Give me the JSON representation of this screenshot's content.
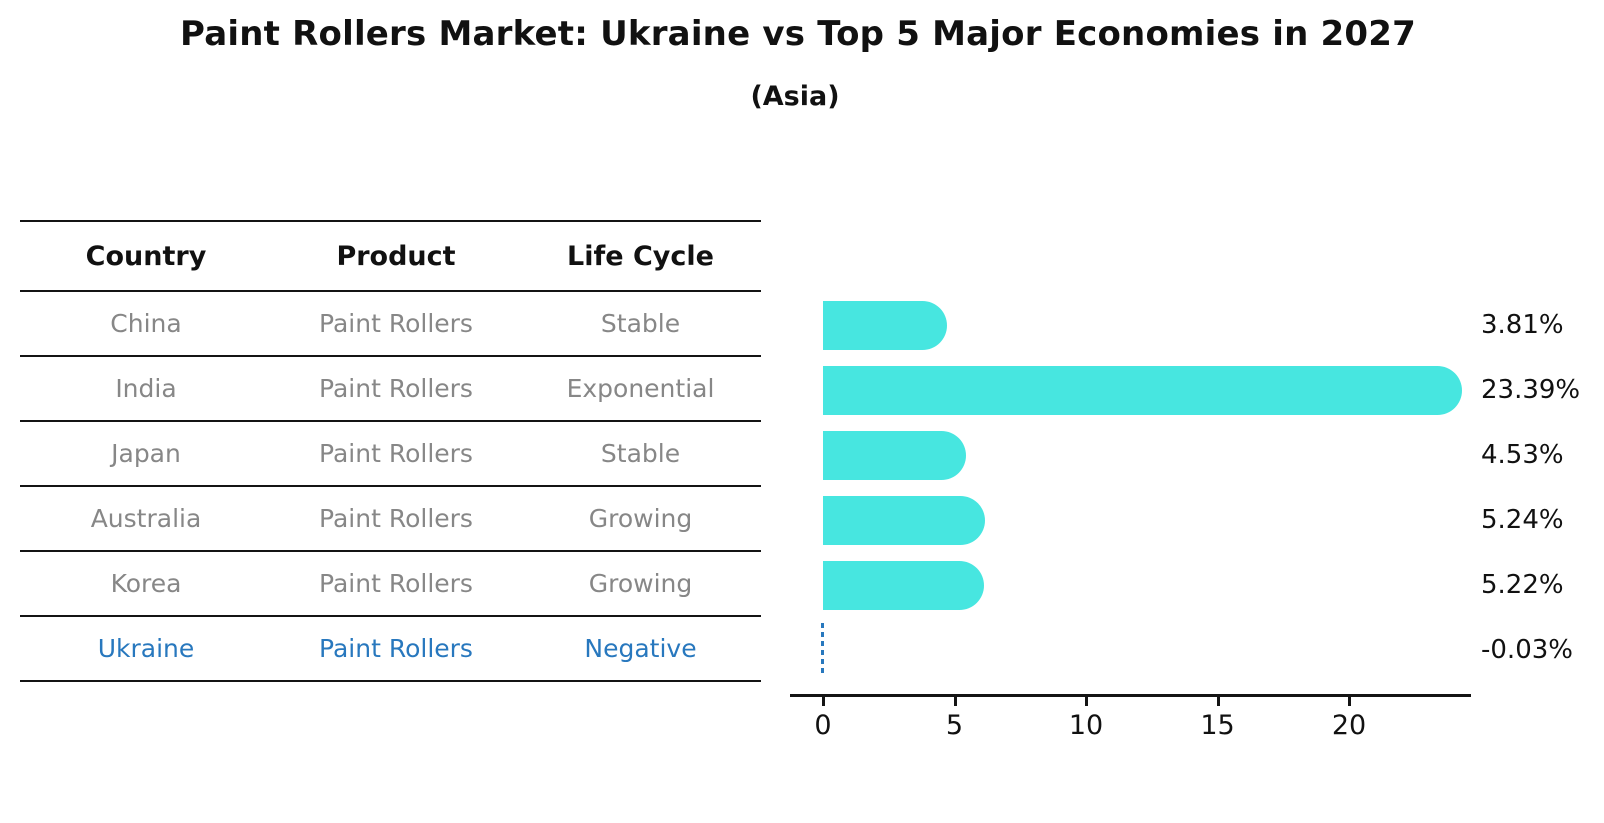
{
  "title": "Paint Rollers Market: Ukraine vs Top 5 Major Economies in 2027",
  "subtitle": "(Asia)",
  "table": {
    "headers": [
      "Country",
      "Product",
      "Life Cycle"
    ],
    "rows": [
      {
        "country": "China",
        "product": "Paint Rollers",
        "life_cycle": "Stable",
        "highlight": false
      },
      {
        "country": "India",
        "product": "Paint Rollers",
        "life_cycle": "Exponential",
        "highlight": false
      },
      {
        "country": "Japan",
        "product": "Paint Rollers",
        "life_cycle": "Stable",
        "highlight": false
      },
      {
        "country": "Australia",
        "product": "Paint Rollers",
        "life_cycle": "Growing",
        "highlight": false
      },
      {
        "country": "Korea",
        "product": "Paint Rollers",
        "life_cycle": "Growing",
        "highlight": false
      },
      {
        "country": "Ukraine",
        "product": "Paint Rollers",
        "life_cycle": "Negative",
        "highlight": true
      }
    ]
  },
  "chart_data": {
    "type": "bar",
    "orientation": "horizontal",
    "title": "Paint Rollers Market: Ukraine vs Top 5 Major Economies in 2027 (Asia)",
    "categories": [
      "China",
      "India",
      "Japan",
      "Australia",
      "Korea",
      "Ukraine"
    ],
    "values": [
      3.81,
      23.39,
      4.53,
      5.24,
      5.22,
      -0.03
    ],
    "labels": [
      "3.81%",
      "23.39%",
      "4.53%",
      "5.24%",
      "5.22%",
      "-0.03%"
    ],
    "xticks": [
      0,
      5,
      10,
      15,
      20
    ],
    "xlim": [
      -1.3,
      24.6
    ],
    "grid": false,
    "legend_position": "none",
    "bar_color": "#47E6E0",
    "negative_marker_style": "dashed-line"
  },
  "colors": {
    "bar": "#47E6E0",
    "accent_blue": "#2878BE",
    "muted_text": "#878787",
    "text": "#111111",
    "background": "#ffffff"
  }
}
